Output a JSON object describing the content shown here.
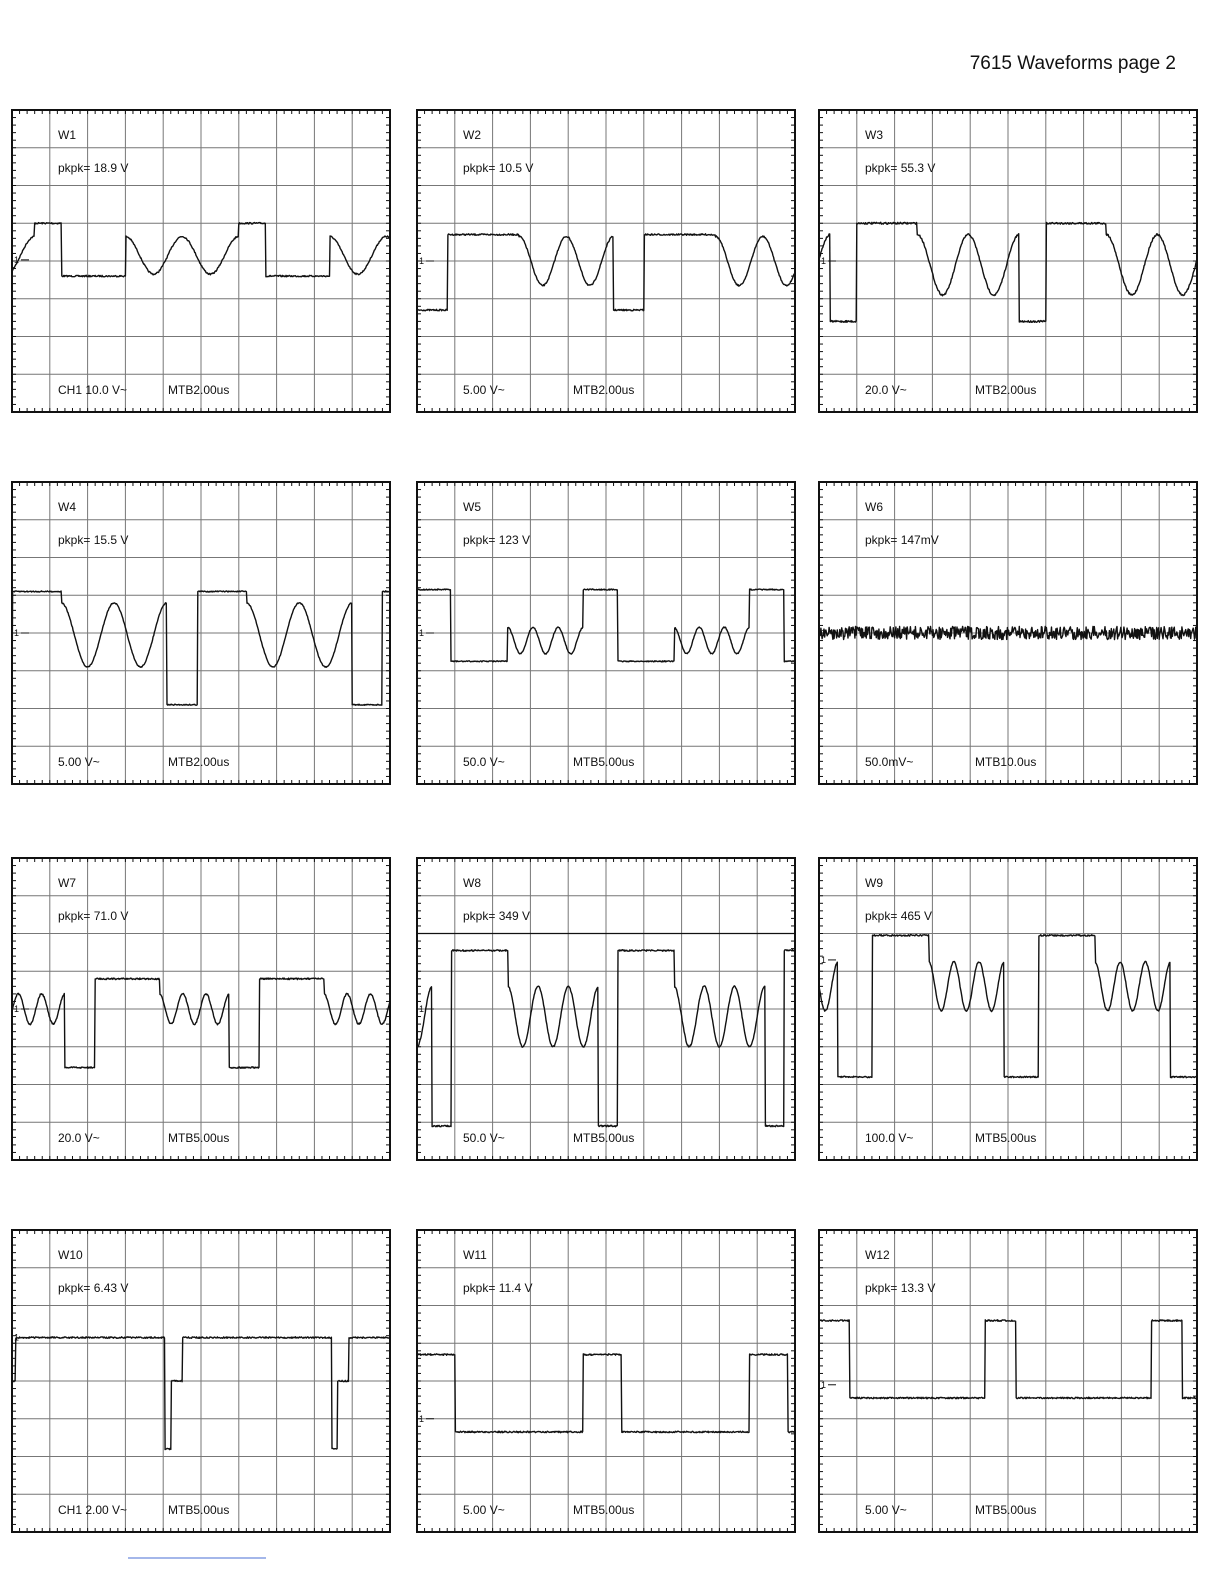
{
  "header": {
    "title": "7615 Waveforms page 2"
  },
  "panels": [
    {
      "label": "W1",
      "pkpk": "pkpk= 18.9 V",
      "scale": "CH1 10.0 V~",
      "timebase": "MTB2.00us",
      "marker": "1"
    },
    {
      "label": "W2",
      "pkpk": "pkpk= 10.5 V",
      "scale": "5.00 V~",
      "timebase": "MTB2.00us",
      "marker": "1"
    },
    {
      "label": "W3",
      "pkpk": "pkpk= 55.3 V",
      "scale": "20.0 V~",
      "timebase": "MTB2.00us",
      "marker": "1"
    },
    {
      "label": "W4",
      "pkpk": "pkpk= 15.5 V",
      "scale": "5.00 V~",
      "timebase": "MTB2.00us",
      "marker": "1"
    },
    {
      "label": "W5",
      "pkpk": "pkpk=  123 V",
      "scale": "50.0 V~",
      "timebase": "MTB5.00us",
      "marker": "1"
    },
    {
      "label": "W6",
      "pkpk": "pkpk=  147mV",
      "scale": "50.0mV~",
      "timebase": "MTB10.0us",
      "marker": "1"
    },
    {
      "label": "W7",
      "pkpk": "pkpk= 71.0 V",
      "scale": "20.0 V~",
      "timebase": "MTB5.00us",
      "marker": "1"
    },
    {
      "label": "W8",
      "pkpk": "pkpk=  349 V",
      "scale": "50.0 V~",
      "timebase": "MTB5.00us",
      "marker": "1"
    },
    {
      "label": "W9",
      "pkpk": "pkpk=  465 V",
      "scale": "100.0 V~",
      "timebase": "MTB5.00us",
      "marker": "1"
    },
    {
      "label": "W10",
      "pkpk": "pkpk= 6.43 V",
      "scale": "CH1 2.00 V~",
      "timebase": "MTB5.00us",
      "marker": "1"
    },
    {
      "label": "W11",
      "pkpk": "pkpk= 11.4 V",
      "scale": "5.00 V~",
      "timebase": "MTB5.00us",
      "marker": "1"
    },
    {
      "label": "W12",
      "pkpk": "pkpk= 13.3 V",
      "scale": "5.00 V~",
      "timebase": "MTB5.00us",
      "marker": "1"
    }
  ]
}
